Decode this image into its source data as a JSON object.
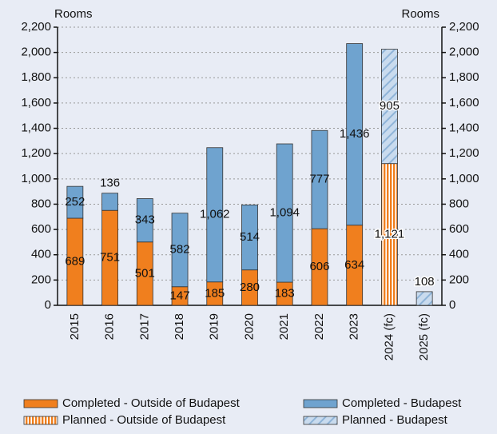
{
  "chart_data": {
    "type": "stacked_bar",
    "y_label": "Rooms",
    "y2_label": "Rooms",
    "categories": [
      "2015",
      "2016",
      "2017",
      "2018",
      "2019",
      "2020",
      "2021",
      "2022",
      "2023",
      "2024 (fc)",
      "2025 (fc)"
    ],
    "series": [
      {
        "name": "Completed - Outside of Budapest",
        "color": "#f07f1e",
        "hatch": "none",
        "values": [
          689,
          751,
          501,
          147,
          185,
          280,
          183,
          606,
          634,
          null,
          null
        ],
        "value_labels": [
          "689",
          "751",
          "501",
          "147",
          "185",
          "280",
          "183",
          "606",
          "634",
          null,
          null
        ]
      },
      {
        "name": "Completed - Budapest",
        "color": "#6fa3cf",
        "hatch": "none",
        "values": [
          252,
          136,
          343,
          582,
          1062,
          514,
          1094,
          777,
          1436,
          null,
          null
        ],
        "value_labels": [
          "252",
          "136",
          "343",
          "582",
          "1,062",
          "514",
          "1,094",
          "777",
          "1,436",
          null,
          null
        ]
      },
      {
        "name": "Planned - Outside of Budapest",
        "color": "#f07f1e",
        "hatch": "vertical",
        "values": [
          null,
          null,
          null,
          null,
          null,
          null,
          null,
          null,
          null,
          1121,
          null
        ],
        "value_labels": [
          null,
          null,
          null,
          null,
          null,
          null,
          null,
          null,
          null,
          "1,121",
          null
        ]
      },
      {
        "name": "Planned - Budapest",
        "color": "#8fb4d8",
        "hatch": "diagonal",
        "values": [
          null,
          null,
          null,
          null,
          null,
          null,
          null,
          null,
          null,
          905,
          108
        ],
        "value_labels": [
          null,
          null,
          null,
          null,
          null,
          null,
          null,
          null,
          null,
          "905",
          "108"
        ]
      }
    ],
    "ylim": [
      0,
      2200
    ],
    "yticks": [
      0,
      200,
      400,
      600,
      800,
      {
        "value": 1000,
        "label": "1,000"
      },
      {
        "value": 1200,
        "label": "1,200"
      },
      {
        "value": 1400,
        "label": "1,400"
      },
      {
        "value": 1600,
        "label": "1,600"
      },
      {
        "value": 1800,
        "label": "1,800"
      },
      {
        "value": 2000,
        "label": "2,000"
      },
      {
        "value": 2200,
        "label": "2,200"
      }
    ],
    "y2lim": [
      0,
      2200
    ],
    "y2ticks": [
      0,
      200,
      400,
      600,
      800,
      {
        "value": 1000,
        "label": "1,000"
      },
      {
        "value": 1200,
        "label": "1,200"
      },
      {
        "value": 1400,
        "label": "1,400"
      },
      {
        "value": 1600,
        "label": "1,600"
      },
      {
        "value": 1800,
        "label": "1,800"
      },
      {
        "value": 2000,
        "label": "2,000"
      },
      {
        "value": 2200,
        "label": "2,200"
      }
    ],
    "grid": true,
    "legend": "bottom"
  }
}
